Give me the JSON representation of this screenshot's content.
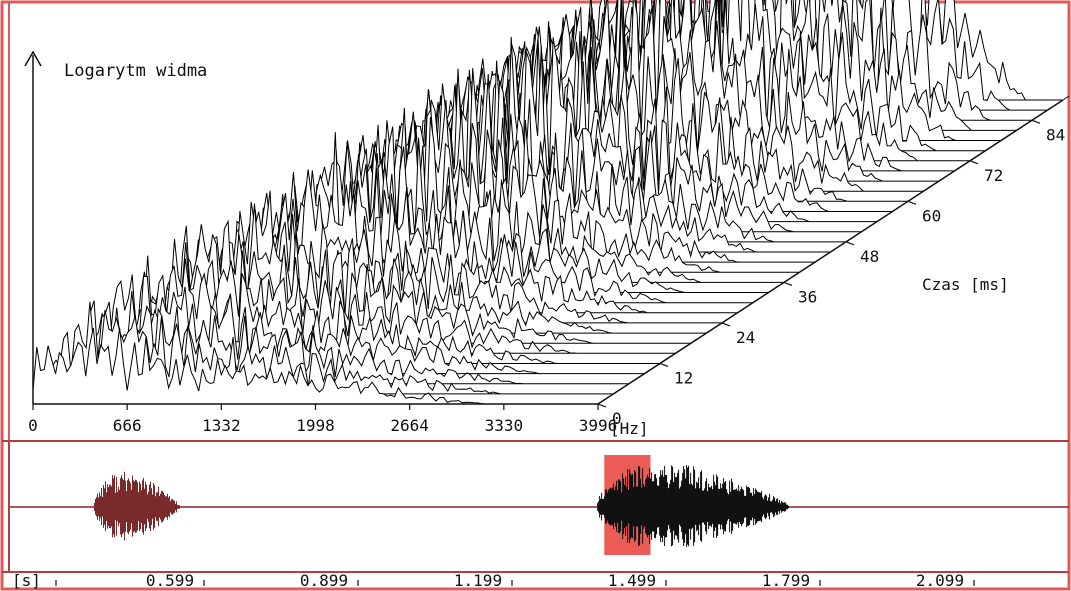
{
  "chart_data": [
    {
      "type": "waterfall-spectrum",
      "title": "",
      "ylabel": "Logarytm widma",
      "xlabel": "[Hz]",
      "zlabel": "Czas [ms]",
      "x_ticks": [
        "0",
        "666",
        "1332",
        "1998",
        "2664",
        "3330",
        "3996"
      ],
      "xlim": [
        0,
        3996
      ],
      "z_ticks": [
        "0",
        "12",
        "24",
        "36",
        "48",
        "60",
        "72",
        "84"
      ],
      "zlim": [
        0,
        90
      ],
      "slice_count": 31,
      "slice_step_ms": 3,
      "envelope_peak_hz": 2664,
      "envelope_peak_ms": 90,
      "colors": {
        "axis": "#111111",
        "frame": "#e05a5a",
        "trace": "#000000"
      }
    },
    {
      "type": "waveform",
      "x_unit_label": "[s]",
      "x_ticks": [
        "0.599",
        "0.899",
        "1.199",
        "1.499",
        "1.799",
        "2.099"
      ],
      "bursts": [
        {
          "start_s": 0.45,
          "end_s": 0.72,
          "peak": 0.75,
          "color": "#7a2a2a"
        },
        {
          "start_s": 1.43,
          "end_s": 2.03,
          "peak": 0.95,
          "color": "#111111"
        }
      ],
      "selection": {
        "start_s": 1.445,
        "end_s": 1.535,
        "color": "#e8403a"
      },
      "baseline_color": "#8a2020",
      "colors": {
        "frame": "#b04040",
        "axis": "#111111"
      }
    }
  ]
}
